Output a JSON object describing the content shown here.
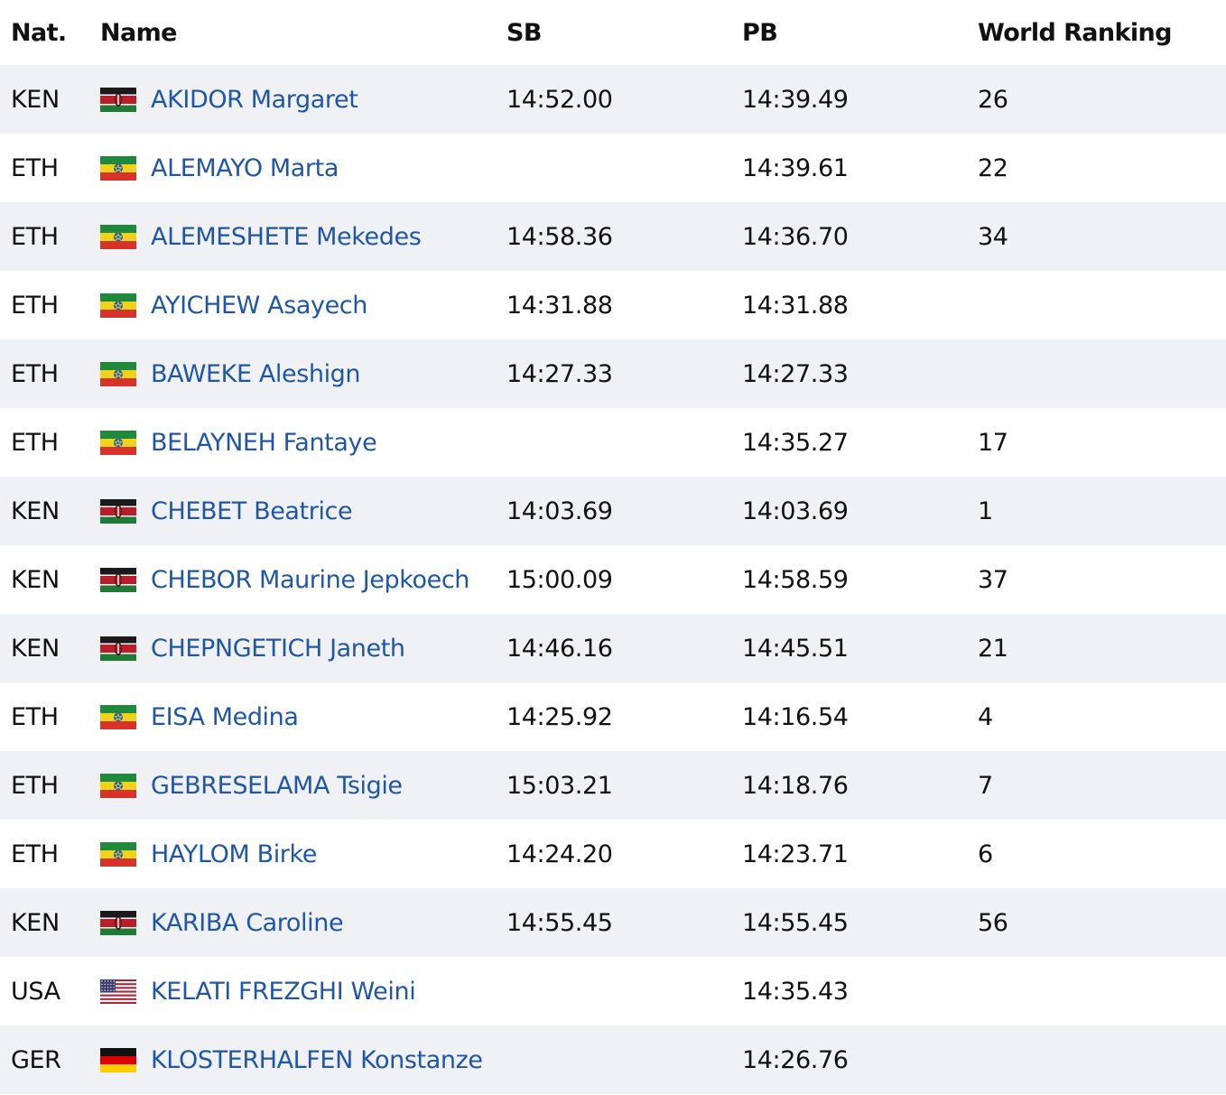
{
  "header": {
    "nat": "Nat.",
    "name": "Name",
    "sb": "SB",
    "pb": "PB",
    "rank": "World Ranking"
  },
  "rows": [
    {
      "nat": "KEN",
      "flag": "flag-ken-icon",
      "name": "AKIDOR Margaret",
      "sb": "14:52.00",
      "pb": "14:39.49",
      "rank": "26"
    },
    {
      "nat": "ETH",
      "flag": "flag-eth-icon",
      "name": "ALEMAYO Marta",
      "sb": "",
      "pb": "14:39.61",
      "rank": "22"
    },
    {
      "nat": "ETH",
      "flag": "flag-eth-icon",
      "name": "ALEMESHETE Mekedes",
      "sb": "14:58.36",
      "pb": "14:36.70",
      "rank": "34"
    },
    {
      "nat": "ETH",
      "flag": "flag-eth-icon",
      "name": "AYICHEW Asayech",
      "sb": "14:31.88",
      "pb": "14:31.88",
      "rank": ""
    },
    {
      "nat": "ETH",
      "flag": "flag-eth-icon",
      "name": "BAWEKE Aleshign",
      "sb": "14:27.33",
      "pb": "14:27.33",
      "rank": ""
    },
    {
      "nat": "ETH",
      "flag": "flag-eth-icon",
      "name": "BELAYNEH Fantaye",
      "sb": "",
      "pb": "14:35.27",
      "rank": "17"
    },
    {
      "nat": "KEN",
      "flag": "flag-ken-icon",
      "name": "CHEBET Beatrice",
      "sb": "14:03.69",
      "pb": "14:03.69",
      "rank": "1"
    },
    {
      "nat": "KEN",
      "flag": "flag-ken-icon",
      "name": "CHEBOR Maurine Jepkoech",
      "sb": "15:00.09",
      "pb": "14:58.59",
      "rank": "37"
    },
    {
      "nat": "KEN",
      "flag": "flag-ken-icon",
      "name": "CHEPNGETICH Janeth",
      "sb": "14:46.16",
      "pb": "14:45.51",
      "rank": "21"
    },
    {
      "nat": "ETH",
      "flag": "flag-eth-icon",
      "name": "EISA Medina",
      "sb": "14:25.92",
      "pb": "14:16.54",
      "rank": "4"
    },
    {
      "nat": "ETH",
      "flag": "flag-eth-icon",
      "name": "GEBRESELAMA Tsigie",
      "sb": "15:03.21",
      "pb": "14:18.76",
      "rank": "7"
    },
    {
      "nat": "ETH",
      "flag": "flag-eth-icon",
      "name": "HAYLOM Birke",
      "sb": "14:24.20",
      "pb": "14:23.71",
      "rank": "6"
    },
    {
      "nat": "KEN",
      "flag": "flag-ken-icon",
      "name": "KARIBA Caroline",
      "sb": "14:55.45",
      "pb": "14:55.45",
      "rank": "56"
    },
    {
      "nat": "USA",
      "flag": "flag-usa-icon",
      "name": "KELATI FREZGHI Weini",
      "sb": "",
      "pb": "14:35.43",
      "rank": ""
    },
    {
      "nat": "GER",
      "flag": "flag-ger-icon",
      "name": "KLOSTERHALFEN Konstanze",
      "sb": "",
      "pb": "14:26.76",
      "rank": ""
    }
  ],
  "colors": {
    "link": "#1f56a8",
    "stripe": "#f0f1f5"
  }
}
